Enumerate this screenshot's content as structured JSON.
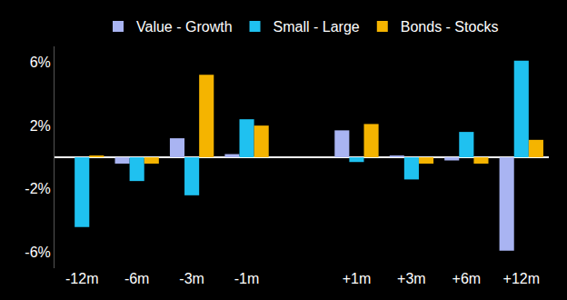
{
  "chart_data": {
    "type": "bar",
    "categories": [
      "-12m",
      "-6m",
      "-3m",
      "-1m",
      null,
      "+1m",
      "+3m",
      "+6m",
      "+12m"
    ],
    "series": [
      {
        "name": "Value - Growth",
        "color": "#a9b4f2",
        "values": [
          0,
          -0.4,
          1.2,
          0.2,
          null,
          1.7,
          0.1,
          -0.2,
          -5.9
        ]
      },
      {
        "name": "Small - Large",
        "color": "#1fc1f0",
        "values": [
          -4.4,
          -1.5,
          -2.4,
          2.4,
          null,
          -0.3,
          -1.4,
          1.6,
          6.1
        ]
      },
      {
        "name": "Bonds - Stocks",
        "color": "#f5b400",
        "values": [
          0.1,
          -0.4,
          5.2,
          2.0,
          null,
          2.1,
          -0.4,
          -0.4,
          1.1
        ]
      }
    ],
    "ylim": [
      -7,
      7
    ],
    "yticks": [
      {
        "value": -6,
        "label": "-6%"
      },
      {
        "value": -2,
        "label": "-2%"
      },
      {
        "value": 2,
        "label": "2%"
      },
      {
        "value": 6,
        "label": "6%"
      }
    ],
    "grid": false,
    "legend": "top"
  }
}
